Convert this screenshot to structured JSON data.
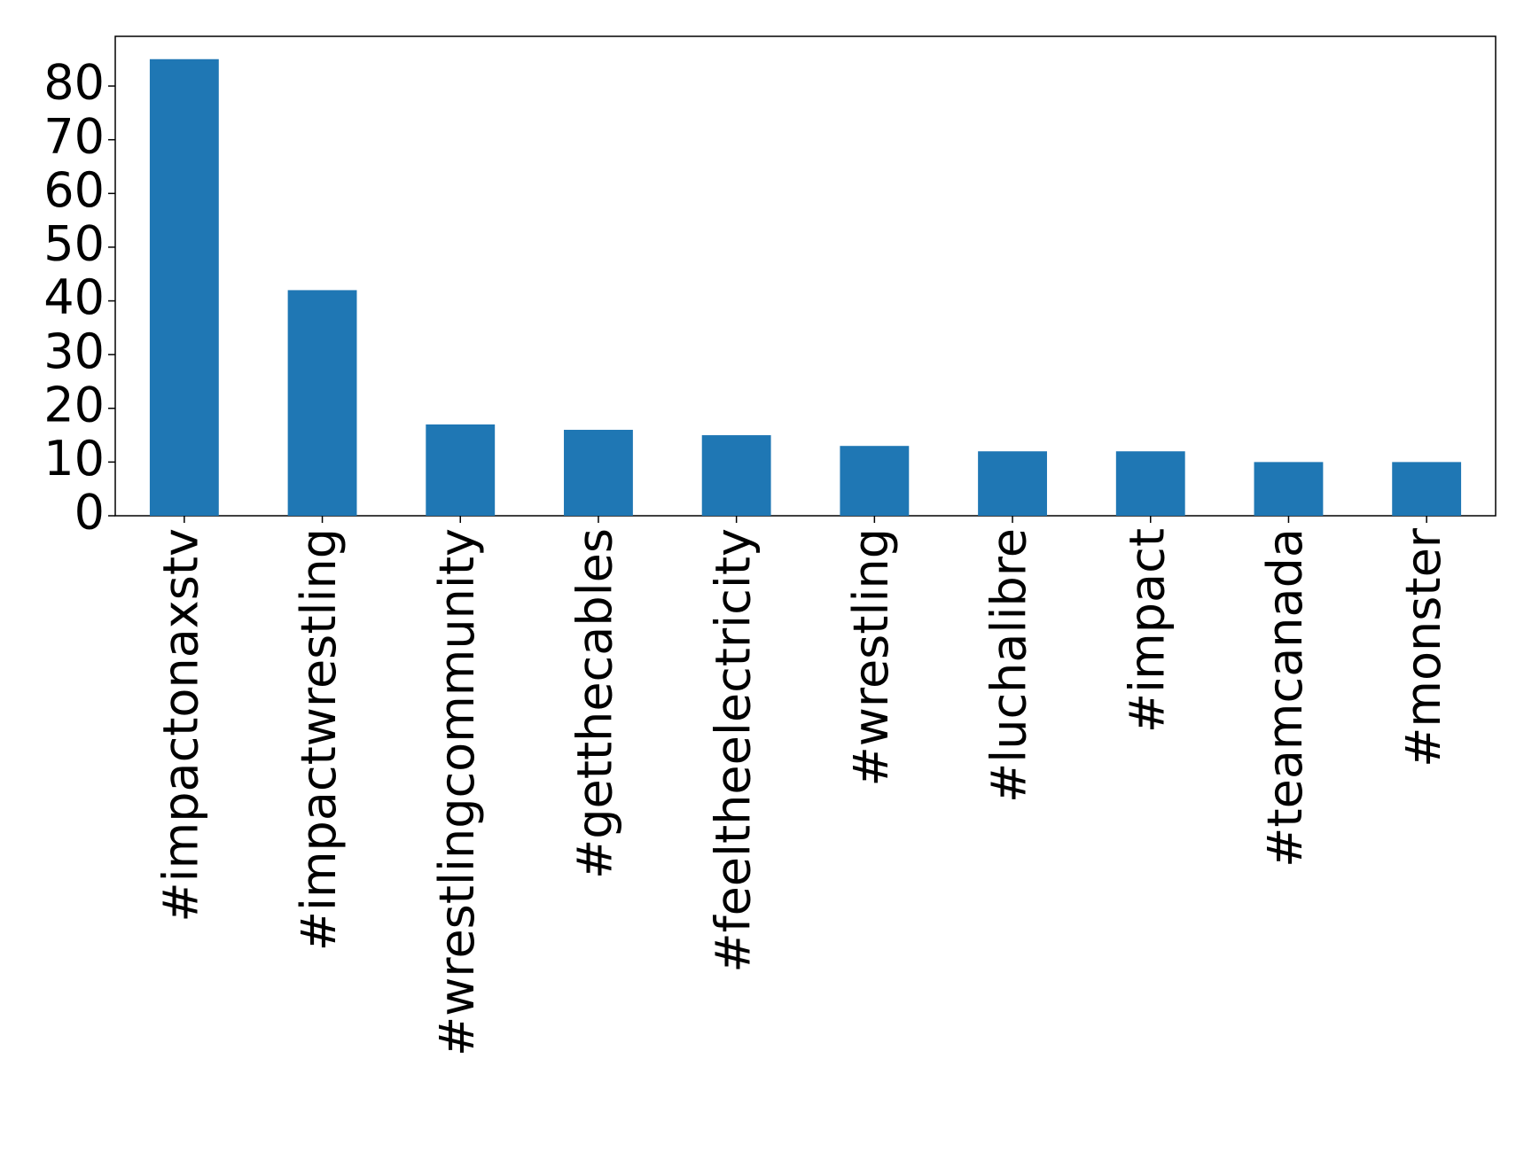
{
  "chart_data": {
    "type": "bar",
    "categories": [
      "#impactonaxstv",
      "#impactwrestling",
      "#wrestlingcommunity",
      "#getthecables",
      "#feeltheelectricity",
      "#wrestling",
      "#luchalibre",
      "#impact",
      "#teamcanada",
      "#monster"
    ],
    "values": [
      85,
      42,
      17,
      16,
      15,
      13,
      12,
      12,
      10,
      10
    ],
    "color": "#1f77b4",
    "ylim": [
      0,
      89.25
    ],
    "yticks": [
      0,
      10,
      20,
      30,
      40,
      50,
      60,
      70,
      80
    ],
    "grid": false
  }
}
